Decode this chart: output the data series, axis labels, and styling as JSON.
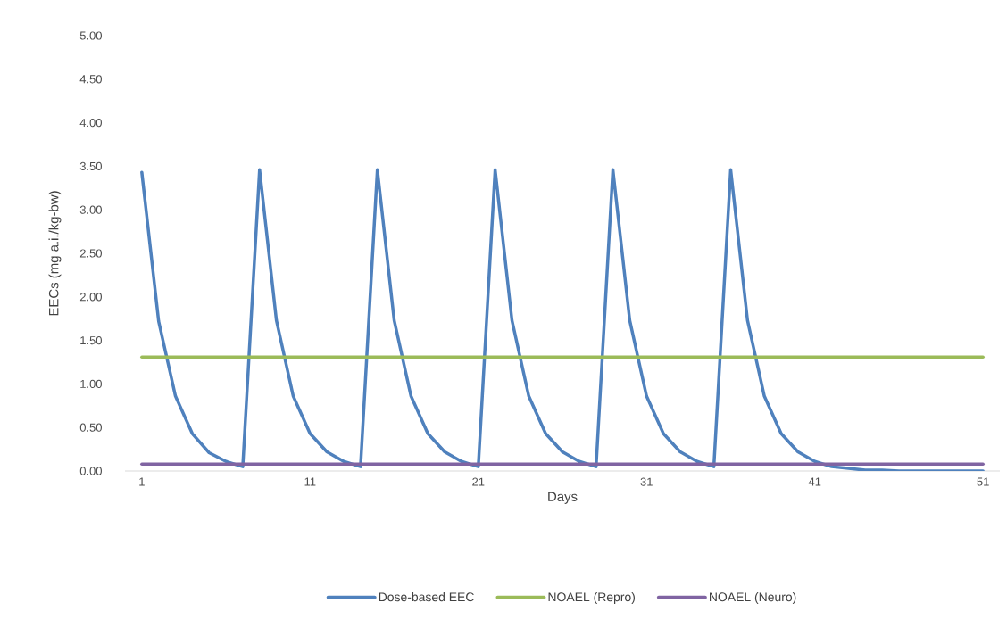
{
  "chart_data": {
    "type": "line",
    "xlabel": "Days",
    "ylabel": "EECs (mg a.i./kg-bw)",
    "x": [
      1,
      2,
      3,
      4,
      5,
      6,
      7,
      8,
      9,
      10,
      11,
      12,
      13,
      14,
      15,
      16,
      17,
      18,
      19,
      20,
      21,
      22,
      23,
      24,
      25,
      26,
      27,
      28,
      29,
      30,
      31,
      32,
      33,
      34,
      35,
      36,
      37,
      38,
      39,
      40,
      41,
      42,
      43,
      44,
      45,
      46,
      47,
      48,
      49,
      50,
      51
    ],
    "xlim": [
      0,
      52
    ],
    "xticks": [
      1,
      11,
      21,
      31,
      41,
      51
    ],
    "ylim": [
      0,
      5
    ],
    "yticks": [
      {
        "value": 0,
        "label": "0.00"
      },
      {
        "value": 0.5,
        "label": "0.50"
      },
      {
        "value": 1,
        "label": "1.00"
      },
      {
        "value": 1.5,
        "label": "1.50"
      },
      {
        "value": 2,
        "label": "2.00"
      },
      {
        "value": 2.5,
        "label": "2.50"
      },
      {
        "value": 3,
        "label": "3.00"
      },
      {
        "value": 3.5,
        "label": "3.50"
      },
      {
        "value": 4,
        "label": "4.00"
      },
      {
        "value": 4.5,
        "label": "4.50"
      },
      {
        "value": 5,
        "label": "5.00"
      }
    ],
    "legend": "bottom",
    "series": [
      {
        "name": "Dose-based EEC",
        "color": "#4f81bd",
        "values": [
          3.43,
          1.72,
          0.86,
          0.43,
          0.21,
          0.11,
          0.05,
          3.46,
          1.73,
          0.86,
          0.43,
          0.22,
          0.11,
          0.05,
          3.46,
          1.73,
          0.86,
          0.43,
          0.22,
          0.11,
          0.05,
          3.46,
          1.73,
          0.86,
          0.43,
          0.22,
          0.11,
          0.05,
          3.46,
          1.73,
          0.86,
          0.43,
          0.22,
          0.11,
          0.05,
          3.46,
          1.73,
          0.86,
          0.43,
          0.22,
          0.11,
          0.05,
          0.03,
          0.01,
          0.01,
          0,
          0,
          0,
          0,
          0,
          0
        ]
      },
      {
        "name": "NOAEL (Repro)",
        "color": "#9bbb59",
        "values": [
          1.31,
          1.31,
          1.31,
          1.31,
          1.31,
          1.31,
          1.31,
          1.31,
          1.31,
          1.31,
          1.31,
          1.31,
          1.31,
          1.31,
          1.31,
          1.31,
          1.31,
          1.31,
          1.31,
          1.31,
          1.31,
          1.31,
          1.31,
          1.31,
          1.31,
          1.31,
          1.31,
          1.31,
          1.31,
          1.31,
          1.31,
          1.31,
          1.31,
          1.31,
          1.31,
          1.31,
          1.31,
          1.31,
          1.31,
          1.31,
          1.31,
          1.31,
          1.31,
          1.31,
          1.31,
          1.31,
          1.31,
          1.31,
          1.31,
          1.31,
          1.31
        ]
      },
      {
        "name": "NOAEL (Neuro)",
        "color": "#8064a2",
        "values": [
          0.08,
          0.08,
          0.08,
          0.08,
          0.08,
          0.08,
          0.08,
          0.08,
          0.08,
          0.08,
          0.08,
          0.08,
          0.08,
          0.08,
          0.08,
          0.08,
          0.08,
          0.08,
          0.08,
          0.08,
          0.08,
          0.08,
          0.08,
          0.08,
          0.08,
          0.08,
          0.08,
          0.08,
          0.08,
          0.08,
          0.08,
          0.08,
          0.08,
          0.08,
          0.08,
          0.08,
          0.08,
          0.08,
          0.08,
          0.08,
          0.08,
          0.08,
          0.08,
          0.08,
          0.08,
          0.08,
          0.08,
          0.08,
          0.08,
          0.08,
          0.08
        ]
      }
    ]
  }
}
